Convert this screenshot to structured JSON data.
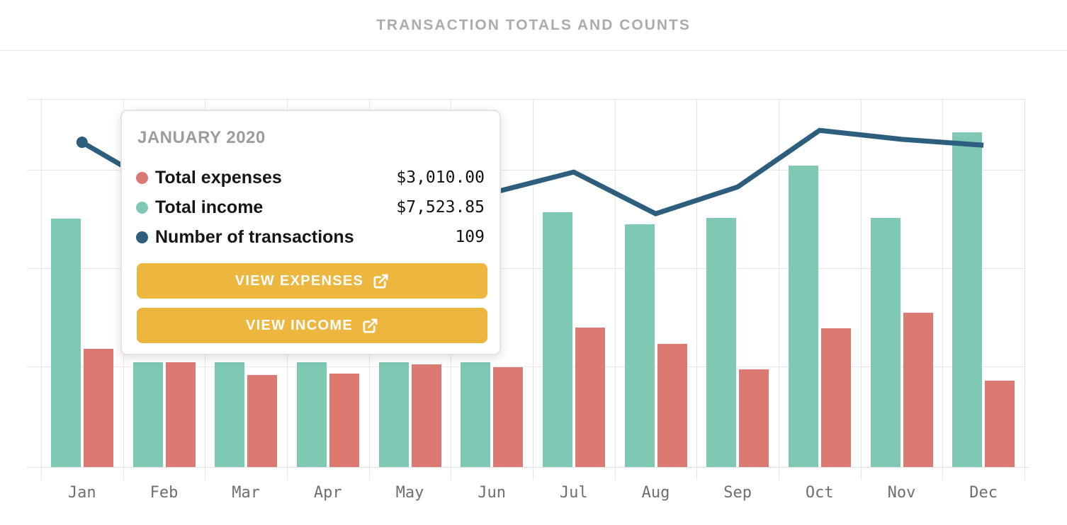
{
  "header": {
    "title": "TRANSACTION TOTALS AND COUNTS"
  },
  "tooltip": {
    "title": "JANUARY 2020",
    "rows": [
      {
        "label": "Total expenses",
        "value": "$3,010.00",
        "color": "#dc7a72"
      },
      {
        "label": "Total income",
        "value": "$7,523.85",
        "color": "#7ec8b4"
      },
      {
        "label": "Number of transactions",
        "value": "109",
        "color": "#2d5e7d"
      }
    ],
    "buttons": [
      {
        "label": "VIEW EXPENSES",
        "icon": "external-link-icon"
      },
      {
        "label": "VIEW INCOME",
        "icon": "external-link-icon"
      }
    ],
    "accent_color": "#edb63e"
  },
  "x_axis": {
    "labels": [
      "Jan",
      "Feb",
      "Mar",
      "Apr",
      "May",
      "Jun",
      "Jul",
      "Aug",
      "Sep",
      "Oct",
      "Nov",
      "Dec"
    ]
  },
  "colors": {
    "income": "#7ec8b4",
    "expenses": "#dc7a72",
    "line": "#2d5e7d",
    "button": "#edb63e",
    "grid": "#e7e7e7",
    "header_text": "#abacae",
    "tooltip_title_text": "#9c9c9c",
    "axis_text": "#6e6e6e"
  },
  "chart_data": {
    "type": "bar+line",
    "title": "TRANSACTION TOTALS AND COUNTS",
    "categories": [
      "Jan",
      "Feb",
      "Mar",
      "Apr",
      "May",
      "Jun",
      "Jul",
      "Aug",
      "Sep",
      "Oct",
      "Nov",
      "Dec"
    ],
    "series": [
      {
        "name": "Total income",
        "type": "bar",
        "color": "#7ec8b4",
        "values": [
          7523.85,
          2540,
          2540,
          2540,
          2540,
          2540,
          7740,
          7330,
          7550,
          9360,
          7550,
          10520
        ]
      },
      {
        "name": "Total expenses",
        "type": "bar",
        "color": "#dc7a72",
        "values": [
          3010.0,
          2540,
          2100,
          2150,
          2470,
          2370,
          3750,
          3180,
          2300,
          3720,
          4260,
          1910
        ]
      },
      {
        "name": "Number of transactions",
        "type": "line",
        "color": "#2d5e7d",
        "values": [
          109,
          93,
          91,
          90,
          91,
          92,
          99,
          85,
          94,
          113,
          110,
          108
        ]
      }
    ],
    "xlabel": "",
    "ylabel": "",
    "legend_position": "none",
    "grid": true,
    "ylim_dollars_est": [
      0,
      11700
    ],
    "ylim_counts_est": [
      0,
      124
    ],
    "values_estimated": true,
    "note": "Only January values are shown exactly (in tooltip); remaining values estimated from bar/line positions. Feb-Jun bar tops and line vertices are partially hidden behind the tooltip."
  }
}
